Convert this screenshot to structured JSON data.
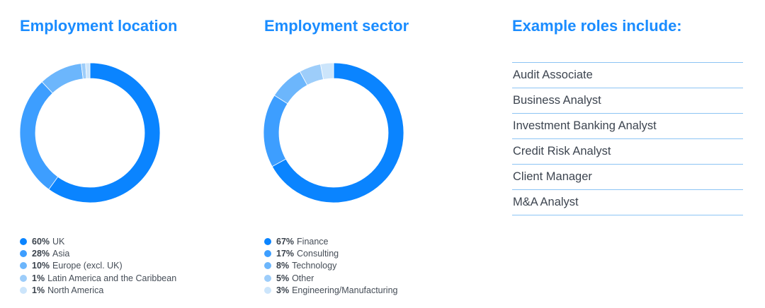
{
  "sections": {
    "location": {
      "title": "Employment location"
    },
    "sector": {
      "title": "Employment sector"
    },
    "roles": {
      "title": "Example roles include:",
      "items": [
        "Audit Associate",
        "Business Analyst",
        "Investment Banking Analyst",
        "Credit Risk Analyst",
        "Client Manager",
        "M&A Analyst"
      ]
    }
  },
  "chart_data": [
    {
      "type": "pie",
      "variant": "donut",
      "title": "Employment location",
      "start": "top-clockwise",
      "slices": [
        {
          "label": "UK",
          "value": 60,
          "pct_text": "60%",
          "color": "#0a84ff"
        },
        {
          "label": "Asia",
          "value": 28,
          "pct_text": "28%",
          "color": "#3d9eff"
        },
        {
          "label": "Europe (excl. UK)",
          "value": 10,
          "pct_text": "10%",
          "color": "#6cb6fc"
        },
        {
          "label": "Latin America and the Caribbean",
          "value": 1,
          "pct_text": "1%",
          "color": "#9dcdfa"
        },
        {
          "label": "North America",
          "value": 1,
          "pct_text": "1%",
          "color": "#cce5fb"
        }
      ]
    },
    {
      "type": "pie",
      "variant": "donut",
      "title": "Employment sector",
      "start": "top-clockwise",
      "slices": [
        {
          "label": "Finance",
          "value": 67,
          "pct_text": "67%",
          "color": "#0a84ff"
        },
        {
          "label": "Consulting",
          "value": 17,
          "pct_text": "17%",
          "color": "#3d9eff"
        },
        {
          "label": "Technology",
          "value": 8,
          "pct_text": "8%",
          "color": "#6cb6fc"
        },
        {
          "label": "Other",
          "value": 5,
          "pct_text": "5%",
          "color": "#9dcdfa"
        },
        {
          "label": "Engineering/Manufacturing",
          "value": 3,
          "pct_text": "3%",
          "color": "#cce5fb"
        }
      ]
    }
  ]
}
